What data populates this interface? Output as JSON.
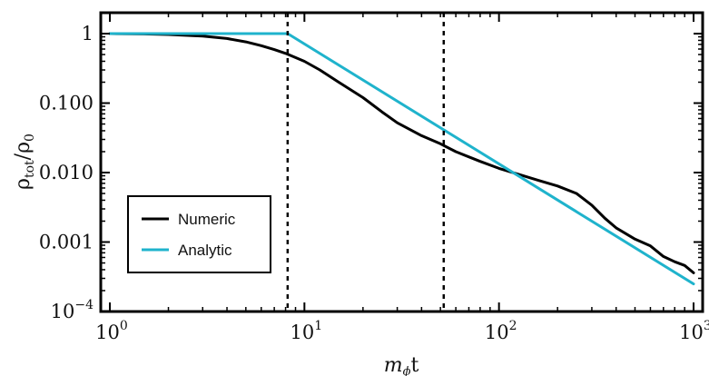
{
  "chart_data": {
    "type": "line",
    "xlabel": "m",
    "xlabel_sub": "ϕ",
    "xlabel_tail": "t",
    "ylabel": "ρ",
    "ylabel_sub": "tot",
    "ylabel_tail": "/ρ",
    "ylabel_sub2": "0",
    "x_scale": "log",
    "y_scale": "log",
    "xlim": [
      1,
      1000
    ],
    "ylim": [
      0.0001,
      2
    ],
    "x_ticks": [
      {
        "value": 1,
        "base": "10",
        "exp": "0"
      },
      {
        "value": 10,
        "base": "10",
        "exp": "1"
      },
      {
        "value": 100,
        "base": "10",
        "exp": "2"
      },
      {
        "value": 1000,
        "base": "10",
        "exp": "3"
      }
    ],
    "y_ticks": [
      {
        "value": 1,
        "label": "1"
      },
      {
        "value": 0.1,
        "label": "0.100"
      },
      {
        "value": 0.01,
        "label": "0.010"
      },
      {
        "value": 0.001,
        "label": "0.001"
      },
      {
        "value": 0.0001,
        "base": "10",
        "exp": "−4"
      }
    ],
    "vlines": [
      8.2,
      52
    ],
    "grid": false,
    "legend_position": "bottom-left",
    "series": [
      {
        "name": "Numeric",
        "color": "#000000",
        "x": [
          1,
          1.5,
          2,
          3,
          4,
          5,
          6,
          7,
          8,
          10,
          12,
          15,
          20,
          25,
          30,
          40,
          50,
          60,
          80,
          100,
          130,
          160,
          200,
          250,
          300,
          350,
          400,
          500,
          600,
          700,
          800,
          900,
          1000
        ],
        "y": [
          1,
          0.99,
          0.97,
          0.92,
          0.85,
          0.76,
          0.67,
          0.59,
          0.52,
          0.4,
          0.3,
          0.2,
          0.12,
          0.075,
          0.052,
          0.034,
          0.026,
          0.02,
          0.0145,
          0.0115,
          0.0092,
          0.0077,
          0.0064,
          0.005,
          0.0034,
          0.0022,
          0.0016,
          0.0011,
          0.00088,
          0.00062,
          0.00052,
          0.00046,
          0.00036
        ]
      },
      {
        "name": "Analytic",
        "color": "#1fb3cc",
        "x": [
          1,
          8.2,
          1000
        ],
        "y": [
          1,
          1,
          0.00025
        ]
      }
    ]
  }
}
